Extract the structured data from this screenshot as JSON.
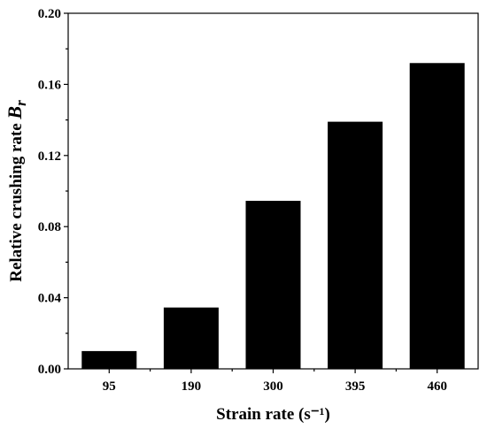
{
  "chart_data": {
    "type": "bar",
    "categories": [
      "95",
      "190",
      "300",
      "395",
      "460"
    ],
    "values": [
      0.01,
      0.0345,
      0.0945,
      0.139,
      0.172
    ],
    "xlabel": "Strain rate (s⁻¹)",
    "ylabel_main": "Relative crushing rate ",
    "ylabel_symbol": "B",
    "ylabel_subscript": "r",
    "ylim": [
      0,
      0.2
    ],
    "yticks": [
      "0.00",
      "0.04",
      "0.08",
      "0.12",
      "0.16",
      "0.20"
    ],
    "bar_color": "#000000",
    "grid": false
  }
}
